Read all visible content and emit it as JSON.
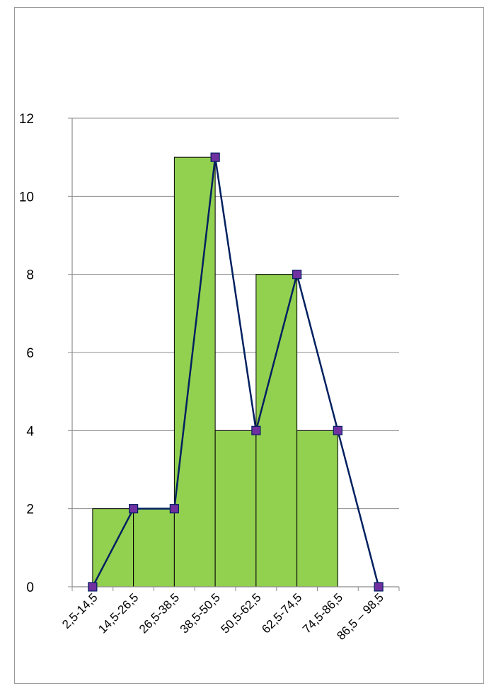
{
  "chart_data": {
    "type": "bar",
    "categories": [
      "2,5-14,5",
      "14,5-26,5",
      "26,5-38,5",
      "38,5-50,5",
      "50,5-62,5",
      "62,5-74,5",
      "74,5-86,5",
      "86,5 – 98,5"
    ],
    "series": [
      {
        "values": [
          0,
          2,
          2,
          11,
          4,
          8,
          4,
          0
        ],
        "render": "histogram",
        "color": "#92d050"
      },
      {
        "values": [
          0,
          2,
          2,
          11,
          4,
          8,
          4,
          0
        ],
        "render": "line-with-square-markers",
        "color": "#002060",
        "marker_color": "#7030a0"
      }
    ],
    "histogram_span": {
      "from_category_index": 1,
      "to_category_index": 6
    },
    "title": "",
    "xlabel": "",
    "ylabel": "",
    "ylim": [
      0,
      12
    ],
    "yticks": [
      0,
      2,
      4,
      6,
      8,
      10,
      12
    ],
    "grid": "horizontal",
    "legend": "none"
  }
}
